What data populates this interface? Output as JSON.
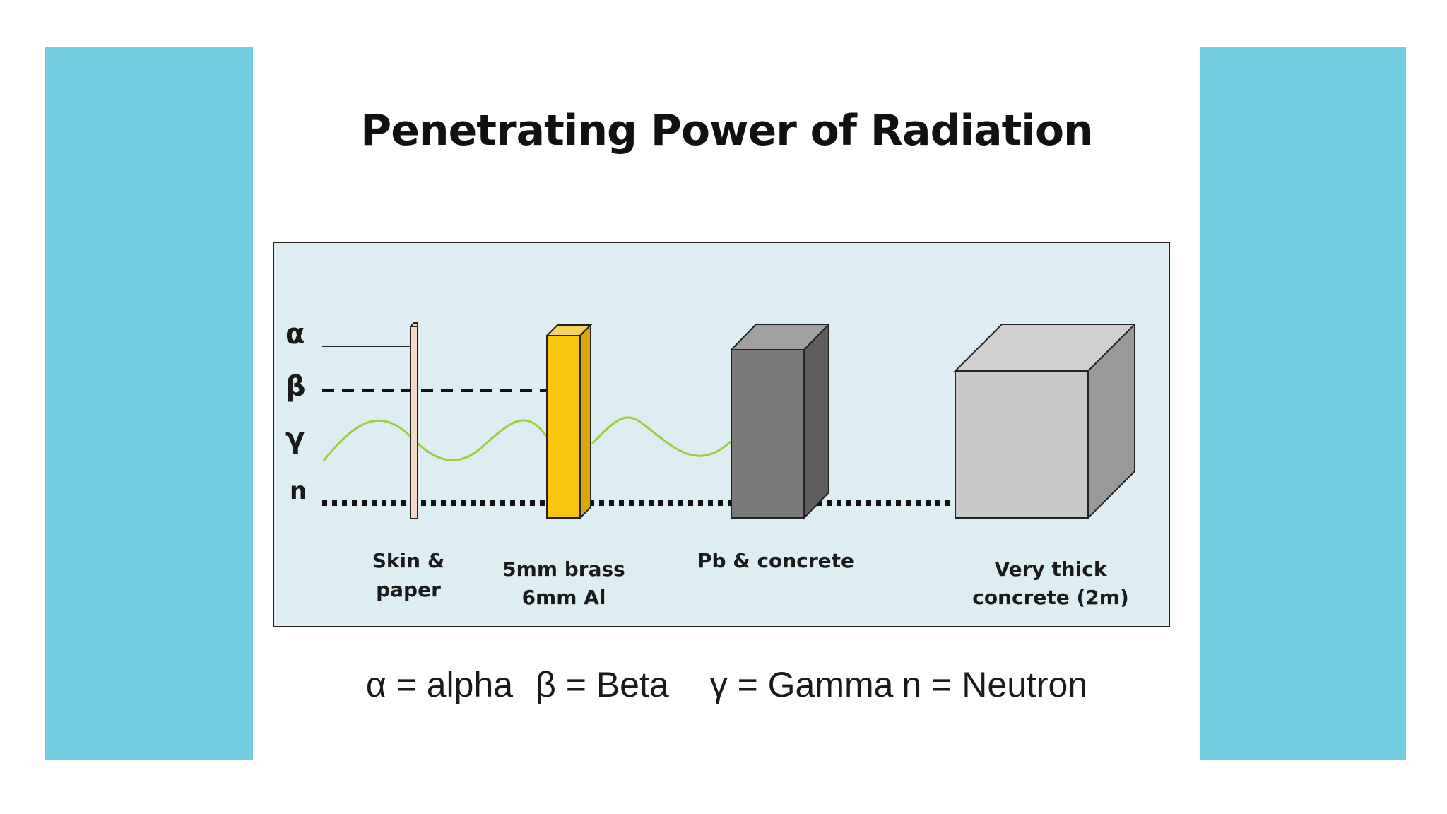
{
  "title": "Penetrating Power of Radiation",
  "particles": {
    "alpha": "α",
    "beta": "β",
    "gamma": "γ",
    "neutron": "n"
  },
  "barriers": [
    {
      "line1": "Skin &",
      "line2": "paper"
    },
    {
      "line1": "5mm brass",
      "line2": "6mm Al"
    },
    {
      "line1": "Pb & concrete",
      "line2": ""
    },
    {
      "line1": "Very thick",
      "line2": "concrete (2m)"
    }
  ],
  "legend": {
    "alpha": "α = alpha",
    "beta": "β = Beta",
    "gamma": "γ = Gamma",
    "neutron": "n = Neutron"
  },
  "colors": {
    "frame": "#72cfe2",
    "panel": "#ddedf2",
    "skin": "#f6d8c6",
    "brass": "#f9c60e",
    "lead": "#7a7a7a",
    "concrete": "#c8c8c8",
    "gamma_wave": "#9ccd3a"
  }
}
